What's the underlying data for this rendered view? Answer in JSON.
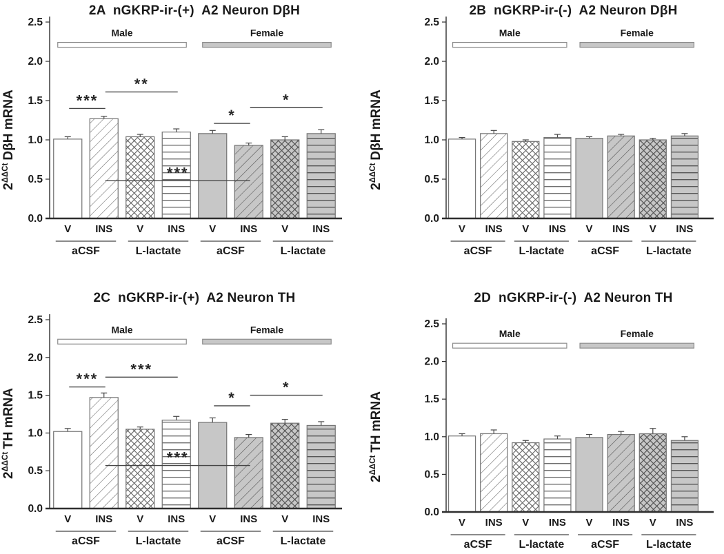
{
  "figure": {
    "background": "#ffffff"
  },
  "colors": {
    "axis": "#2e2e2e",
    "bar_outline": "#767676",
    "bar_white": "#ffffff",
    "bar_gray": "#c7c7c7",
    "hatch_on_white": "#6f6f6f",
    "hatch_on_gray": "#565656",
    "error_bar": "#474747",
    "sig_line": "#454545",
    "text": "#1a1a1a",
    "band_outline": "#8c8c8c"
  },
  "chart_data": [
    {
      "type": "bar",
      "id": "2A",
      "title": "2A  nGKRP-ir-(+)  A2 Neuron DβH",
      "ylabel": {
        "base": "2",
        "sup": "ΔΔCt",
        "rest": "DβH mRNA"
      },
      "ylim": [
        0.0,
        2.5
      ],
      "ytick_labels": [
        "0.0",
        "0.5",
        "1.0",
        "1.5",
        "2.0",
        "2.5"
      ],
      "sex_groups": [
        {
          "label": "Male",
          "bars": [
            0,
            3
          ],
          "fill": "white"
        },
        {
          "label": "Female",
          "bars": [
            4,
            7
          ],
          "fill": "gray"
        }
      ],
      "categories": [
        "V",
        "INS",
        "V",
        "INS",
        "V",
        "INS",
        "V",
        "INS"
      ],
      "treatment_groups": [
        {
          "label": "aCSF",
          "bars": [
            0,
            1
          ]
        },
        {
          "label": "L-lactate",
          "bars": [
            2,
            3
          ]
        },
        {
          "label": "aCSF",
          "bars": [
            4,
            5
          ]
        },
        {
          "label": "L-lactate",
          "bars": [
            6,
            7
          ]
        }
      ],
      "bar_styles": [
        "white-plain",
        "white-diagonal",
        "white-crosshatch",
        "white-horizontal",
        "gray-plain",
        "gray-diagonal",
        "gray-crosshatch",
        "gray-horizontal"
      ],
      "values": [
        1.01,
        1.27,
        1.04,
        1.1,
        1.08,
        0.93,
        1.0,
        1.08
      ],
      "errors": [
        0.03,
        0.03,
        0.03,
        0.04,
        0.04,
        0.03,
        0.04,
        0.05
      ],
      "significance": [
        {
          "from": 0,
          "to": 1,
          "label": "***",
          "y": 1.4
        },
        {
          "from": 1,
          "to": 3,
          "label": "**",
          "y": 1.61
        },
        {
          "from": 4,
          "to": 5,
          "label": "*",
          "y": 1.21
        },
        {
          "from": 5,
          "to": 7,
          "label": "*",
          "y": 1.41
        },
        {
          "from": 1,
          "to": 5,
          "label": "***",
          "y": 0.48
        }
      ]
    },
    {
      "type": "bar",
      "id": "2B",
      "title": "2B  nGKRP-ir-(-)  A2 Neuron DβH",
      "ylabel": {
        "base": "2",
        "sup": "ΔΔCt",
        "rest": "DβH mRNA"
      },
      "ylim": [
        0.0,
        2.5
      ],
      "ytick_labels": [
        "0.0",
        "0.5",
        "1.0",
        "1.5",
        "2.0",
        "2.5"
      ],
      "sex_groups": [
        {
          "label": "Male",
          "bars": [
            0,
            3
          ],
          "fill": "white"
        },
        {
          "label": "Female",
          "bars": [
            4,
            7
          ],
          "fill": "gray"
        }
      ],
      "categories": [
        "V",
        "INS",
        "V",
        "INS",
        "V",
        "INS",
        "V",
        "INS"
      ],
      "treatment_groups": [
        {
          "label": "aCSF",
          "bars": [
            0,
            1
          ]
        },
        {
          "label": "L-lactate",
          "bars": [
            2,
            3
          ]
        },
        {
          "label": "aCSF",
          "bars": [
            4,
            5
          ]
        },
        {
          "label": "L-lactate",
          "bars": [
            6,
            7
          ]
        }
      ],
      "bar_styles": [
        "white-plain",
        "white-diagonal",
        "white-crosshatch",
        "white-horizontal",
        "gray-plain",
        "gray-diagonal",
        "gray-crosshatch",
        "gray-horizontal"
      ],
      "values": [
        1.01,
        1.08,
        0.98,
        1.03,
        1.02,
        1.05,
        1.0,
        1.05
      ],
      "errors": [
        0.02,
        0.04,
        0.02,
        0.04,
        0.02,
        0.02,
        0.02,
        0.03
      ],
      "significance": []
    },
    {
      "type": "bar",
      "id": "2C",
      "title": "2C  nGKRP-ir-(+)  A2 Neuron TH",
      "ylabel": {
        "base": "2",
        "sup": "ΔΔCt",
        "rest": "TH mRNA"
      },
      "ylim": [
        0.0,
        2.5
      ],
      "ytick_labels": [
        "0.0",
        "0.5",
        "1.0",
        "1.5",
        "2.0",
        "2.5"
      ],
      "sex_groups": [
        {
          "label": "Male",
          "bars": [
            0,
            3
          ],
          "fill": "white"
        },
        {
          "label": "Female",
          "bars": [
            4,
            7
          ],
          "fill": "gray"
        }
      ],
      "categories": [
        "V",
        "INS",
        "V",
        "INS",
        "V",
        "INS",
        "V",
        "INS"
      ],
      "treatment_groups": [
        {
          "label": "aCSF",
          "bars": [
            0,
            1
          ]
        },
        {
          "label": "L-lactate",
          "bars": [
            2,
            3
          ]
        },
        {
          "label": "aCSF",
          "bars": [
            4,
            5
          ]
        },
        {
          "label": "L-lactate",
          "bars": [
            6,
            7
          ]
        }
      ],
      "bar_styles": [
        "white-plain",
        "white-diagonal",
        "white-crosshatch",
        "white-horizontal",
        "gray-plain",
        "gray-diagonal",
        "gray-crosshatch",
        "gray-horizontal"
      ],
      "values": [
        1.02,
        1.47,
        1.05,
        1.17,
        1.14,
        0.94,
        1.13,
        1.1
      ],
      "errors": [
        0.04,
        0.06,
        0.03,
        0.05,
        0.06,
        0.04,
        0.05,
        0.05
      ],
      "significance": [
        {
          "from": 0,
          "to": 1,
          "label": "***",
          "y": 1.61
        },
        {
          "from": 1,
          "to": 3,
          "label": "***",
          "y": 1.74
        },
        {
          "from": 4,
          "to": 5,
          "label": "*",
          "y": 1.36
        },
        {
          "from": 5,
          "to": 7,
          "label": "*",
          "y": 1.5
        },
        {
          "from": 1,
          "to": 5,
          "label": "***",
          "y": 0.57
        }
      ]
    },
    {
      "type": "bar",
      "id": "2D",
      "title": "2D  nGKRP-ir-(-)  A2 Neuron TH",
      "ylabel": {
        "base": "2",
        "sup": "ΔΔCt",
        "rest": "TH mRNA"
      },
      "ylim": [
        0.0,
        2.5
      ],
      "ytick_labels": [
        "0.0",
        "0.5",
        "1.0",
        "1.5",
        "2.0",
        "2.5"
      ],
      "sex_groups": [
        {
          "label": "Male",
          "bars": [
            0,
            3
          ],
          "fill": "white"
        },
        {
          "label": "Female",
          "bars": [
            4,
            7
          ],
          "fill": "gray"
        }
      ],
      "categories": [
        "V",
        "INS",
        "V",
        "INS",
        "V",
        "INS",
        "V",
        "INS"
      ],
      "treatment_groups": [
        {
          "label": "aCSF",
          "bars": [
            0,
            1
          ]
        },
        {
          "label": "L-lactate",
          "bars": [
            2,
            3
          ]
        },
        {
          "label": "aCSF",
          "bars": [
            4,
            5
          ]
        },
        {
          "label": "L-lactate",
          "bars": [
            6,
            7
          ]
        }
      ],
      "bar_styles": [
        "white-plain",
        "white-diagonal",
        "white-crosshatch",
        "white-horizontal",
        "gray-plain",
        "gray-diagonal",
        "gray-crosshatch",
        "gray-horizontal"
      ],
      "values": [
        1.01,
        1.04,
        0.92,
        0.97,
        0.99,
        1.03,
        1.04,
        0.95
      ],
      "errors": [
        0.03,
        0.05,
        0.03,
        0.04,
        0.04,
        0.04,
        0.07,
        0.05
      ],
      "significance": []
    }
  ]
}
